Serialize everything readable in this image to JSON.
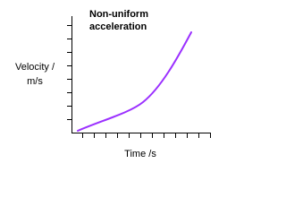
{
  "title_lines": [
    "Non-uniform",
    "acceleration"
  ],
  "y_axis_label_lines": [
    "Velocity /",
    "m/s"
  ],
  "x_axis_label": "Time /s"
}
